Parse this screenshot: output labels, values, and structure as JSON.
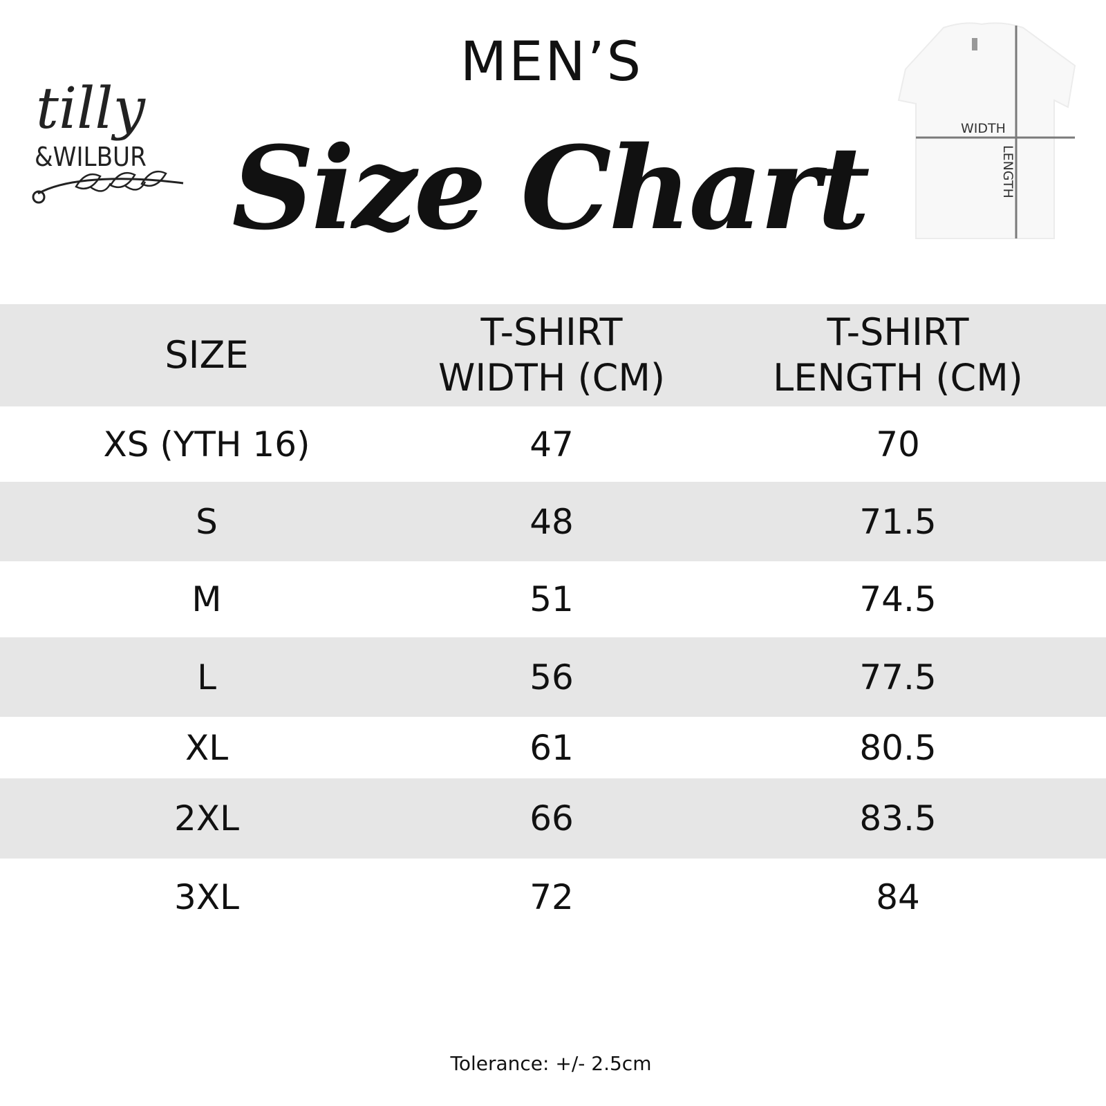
{
  "brand": {
    "logo_text_top": "tilly",
    "logo_text_bottom": "&WILBUR"
  },
  "header": {
    "subtitle": "MEN’S",
    "title": "Size Chart"
  },
  "diagram": {
    "width_label": "WIDTH",
    "length_label": "LENGTH"
  },
  "table": {
    "columns": [
      "SIZE",
      "T-SHIRT\nWIDTH (CM)",
      "T-SHIRT\nLENGTH (CM)"
    ],
    "rows": [
      {
        "size": "XS (YTH 16)",
        "width": "47",
        "length": "70"
      },
      {
        "size": "S",
        "width": "48",
        "length": "71.5"
      },
      {
        "size": "M",
        "width": "51",
        "length": "74.5"
      },
      {
        "size": "L",
        "width": "56",
        "length": "77.5"
      },
      {
        "size": "XL",
        "width": "61",
        "length": "80.5"
      },
      {
        "size": "2XL",
        "width": "66",
        "length": "83.5"
      },
      {
        "size": "3XL",
        "width": "72",
        "length": "84"
      }
    ]
  },
  "footer": {
    "tolerance": "Tolerance: +/- 2.5cm"
  },
  "colors": {
    "stripe": "#e6e6e6",
    "text": "#111111",
    "measure_line": "#7a7a7a"
  }
}
